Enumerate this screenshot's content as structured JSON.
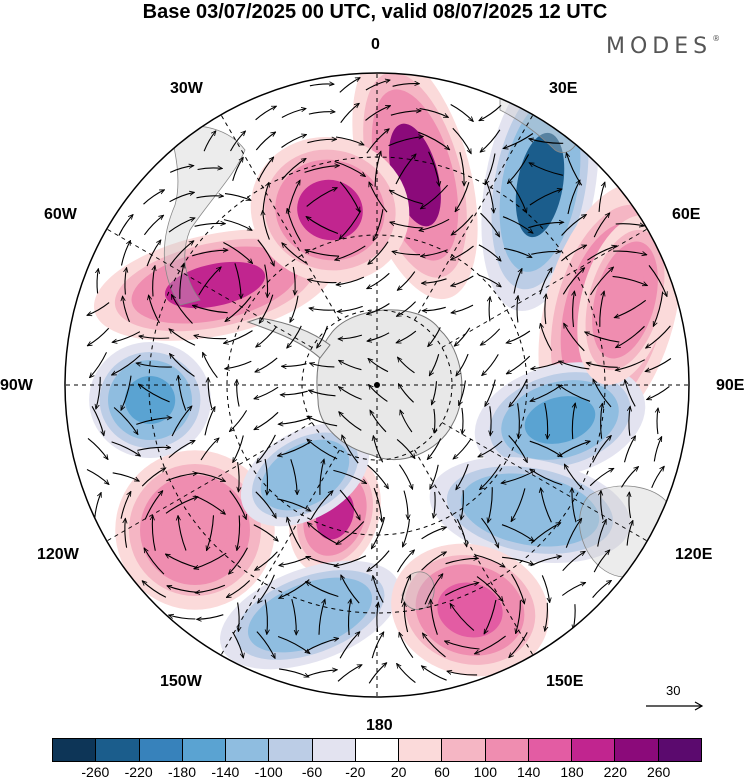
{
  "title": "Base 03/07/2025 00 UTC, valid 08/07/2025 12 UTC",
  "brand": "MODES",
  "brand_mark": "®",
  "longitude_labels": {
    "n0": "0",
    "e30": "30E",
    "e60": "60E",
    "e90": "90E",
    "e120": "120E",
    "e150": "150E",
    "s180": "180",
    "w150": "150W",
    "w120": "120W",
    "w90": "90W",
    "w60": "60W",
    "w30": "30W"
  },
  "reference_vector": {
    "label": "30"
  },
  "colorbar": {
    "colors": [
      "#0d3557",
      "#1b5d8c",
      "#3782bb",
      "#5aa3d2",
      "#8fbde0",
      "#bccde6",
      "#e3e3f0",
      "#ffffff",
      "#fbdada",
      "#f5b6c4",
      "#ef8db0",
      "#e35ca3",
      "#c1258f",
      "#8b0a7a",
      "#5b0a6e"
    ],
    "ticks": [
      "-260",
      "-220",
      "-180",
      "-140",
      "-100",
      "-60",
      "-20",
      "20",
      "60",
      "100",
      "140",
      "180",
      "220",
      "260"
    ]
  },
  "anomaly_centers": [
    {
      "value": 250,
      "color": "#8b0a7a"
    },
    {
      "value": -230,
      "color": "#1b5d8c"
    },
    {
      "value": 200,
      "color": "#c1258f"
    },
    {
      "value": -150,
      "color": "#5aa3d2"
    },
    {
      "value": 190,
      "color": "#c1258f"
    },
    {
      "value": 170,
      "color": "#e35ca3"
    },
    {
      "value": -140,
      "color": "#5aa3d2"
    },
    {
      "value": 200,
      "color": "#c1258f"
    },
    {
      "value": 120,
      "color": "#ef8db0"
    },
    {
      "value": -130,
      "color": "#8fbde0"
    },
    {
      "value": 130,
      "color": "#ef8db0"
    },
    {
      "value": -120,
      "color": "#8fbde0"
    },
    {
      "value": -110,
      "color": "#8fbde0"
    },
    {
      "value": 150,
      "color": "#e35ca3"
    }
  ]
}
